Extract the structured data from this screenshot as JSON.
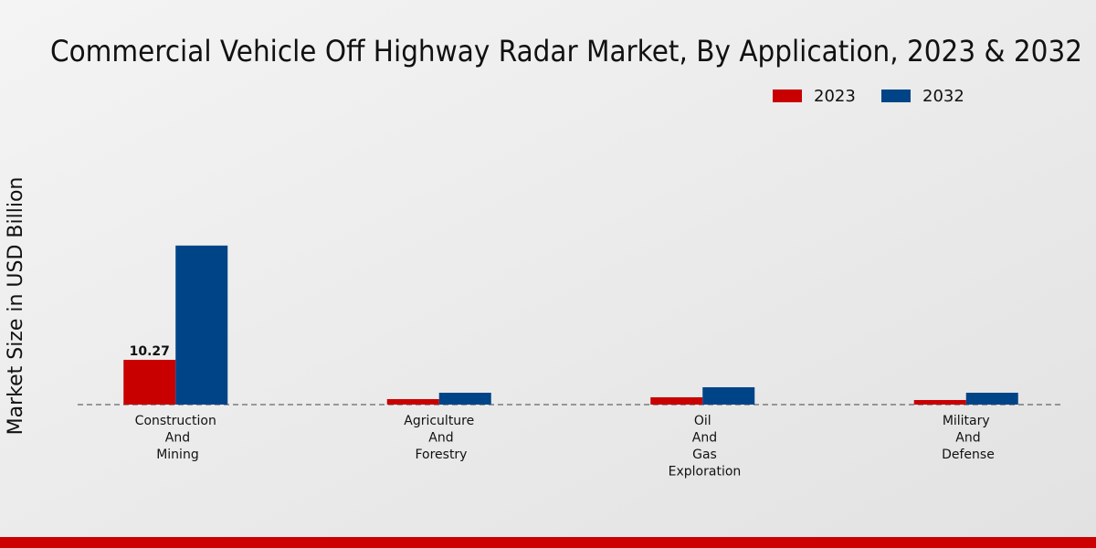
{
  "chart_data": {
    "type": "bar",
    "title": "Commercial Vehicle Off Highway Radar Market, By Application, 2023 & 2032",
    "y_label": "Market Size in USD Billion",
    "categories": [
      "Construction And Mining",
      "Agriculture And Forestry",
      "Oil And Gas Exploration",
      "Military And Defense"
    ],
    "series": [
      {
        "name": "2023",
        "color": "#c80000",
        "values": [
          10.27,
          1.26,
          1.68,
          1.05
        ],
        "value_labels": [
          "10.27",
          null,
          null,
          null
        ]
      },
      {
        "name": "2032",
        "color": "#004488",
        "values": [
          36.47,
          2.72,
          3.98,
          2.72
        ]
      }
    ],
    "ylim": [
      0,
      40
    ]
  }
}
